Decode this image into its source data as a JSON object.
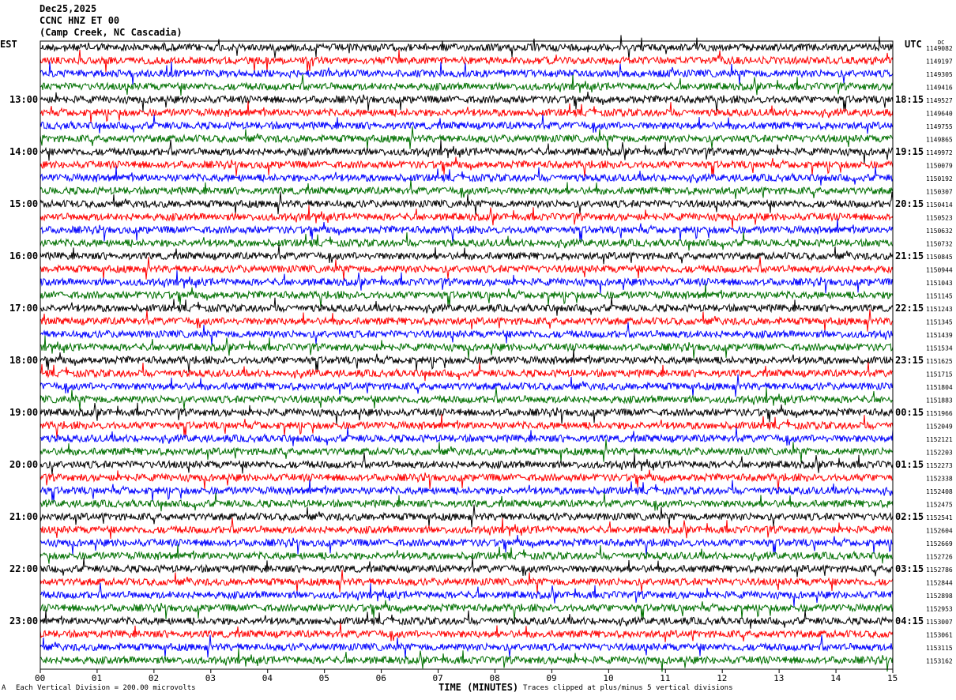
{
  "header": {
    "date": "Dec25,2025",
    "station": "CCNC HNZ ET 00",
    "location": "(Camp Creek, NC Cascadia)"
  },
  "chart_data": {
    "type": "line",
    "subtype": "helicorder",
    "left_timezone": "EST",
    "right_timezone": "UTC",
    "right_header": "DC",
    "xlabel": "TIME (MINUTES)",
    "x_ticks": [
      "00",
      "01",
      "02",
      "03",
      "04",
      "05",
      "06",
      "07",
      "08",
      "09",
      "10",
      "11",
      "12",
      "13",
      "14",
      "15"
    ],
    "xlim": [
      0,
      15
    ],
    "trace_colors": [
      "#000000",
      "#ff0000",
      "#0000ff",
      "#007000"
    ],
    "est_labels": [
      "13:00",
      "14:00",
      "15:00",
      "16:00",
      "17:00",
      "18:00",
      "19:00",
      "20:00",
      "21:00",
      "22:00",
      "23:00"
    ],
    "utc_labels": [
      "18:15",
      "19:15",
      "20:15",
      "21:15",
      "22:15",
      "23:15",
      "00:15",
      "01:15",
      "02:15",
      "03:15",
      "04:15"
    ],
    "dc_offsets": [
      1149082,
      1149197,
      1149305,
      1149416,
      1149527,
      1149640,
      1149755,
      1149865,
      1149972,
      1150079,
      1150192,
      1150307,
      1150414,
      1150523,
      1150632,
      1150732,
      1150845,
      1150944,
      1151043,
      1151145,
      1151243,
      1151345,
      1151439,
      1151534,
      1151625,
      1151715,
      1151804,
      1151883,
      1151966,
      1152049,
      1152121,
      1152203,
      1152273,
      1152338,
      1152408,
      1152475,
      1152541,
      1152604,
      1152669,
      1152726,
      1152786,
      1152844,
      1152898,
      1152953,
      1153007,
      1153061,
      1153115,
      1153162
    ]
  },
  "footer": {
    "scale_note": "Each Vertical Division =  200.00 microvolts",
    "clip_note": "Traces clipped at plus/minus 5 vertical divisions",
    "logo": "A"
  }
}
